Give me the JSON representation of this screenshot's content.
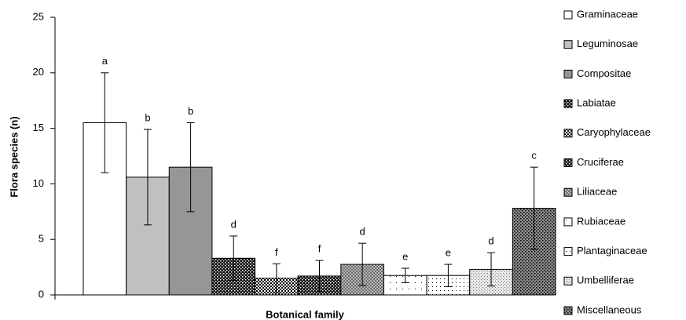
{
  "chart_data": {
    "type": "bar",
    "xlabel": "Botanical family",
    "ylabel": "Flora species (n)",
    "categories": [
      "Graminaceae",
      "Leguminosae",
      "Compositae",
      "Labiatae",
      "Caryophylaceae",
      "Cruciferae",
      "Liliaceae",
      "Rubiaceae",
      "Plantaginaceae",
      "Umbelliferae",
      "Miscellaneous"
    ],
    "values": [
      15.5,
      10.6,
      11.5,
      3.3,
      1.5,
      1.7,
      2.75,
      1.75,
      1.75,
      2.3,
      7.8
    ],
    "errors": [
      4.5,
      4.3,
      4.0,
      2.0,
      1.3,
      1.4,
      1.9,
      0.65,
      1.0,
      1.5,
      3.7
    ],
    "annotations": [
      "a",
      "b",
      "b",
      "d",
      "f",
      "f",
      "d",
      "e",
      "e",
      "d",
      "c"
    ],
    "colors": [
      "#ffffff",
      "#c0c0c0",
      "#969696",
      "#000000",
      "#ffffff",
      "#000000",
      "#d0d0d0",
      "#ffffff",
      "#ffffff",
      "#e8e8e8",
      "#909090"
    ],
    "patterns": [
      "solid",
      "solid",
      "solid",
      "dots-light",
      "checker",
      "dots-light",
      "crosshatch",
      "dots-sparse",
      "dots-dense",
      "grid",
      "dots-light"
    ],
    "ylim": [
      0,
      25
    ],
    "yticks": [
      0,
      5,
      10,
      15,
      20,
      25
    ],
    "legend": "right"
  }
}
